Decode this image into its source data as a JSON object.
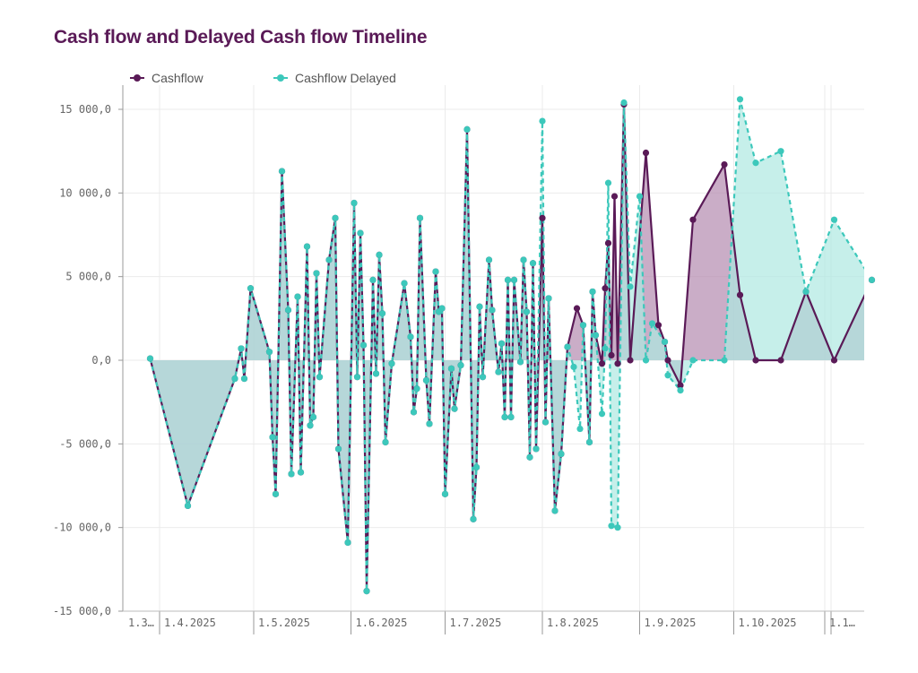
{
  "title": "Cash flow and Delayed Cash flow Timeline",
  "colors": {
    "cashflow": "#5a1a57",
    "delayed": "#3cc8bb",
    "cashflow_fill": "#b48aaf",
    "delayed_fill": "#aee8e1",
    "overlap_fill": "#7fa4ad",
    "grid": "#ebebeb"
  },
  "chart_data": {
    "type": "area",
    "title": "Cash flow and Delayed Cash flow Timeline",
    "xlabel": "",
    "ylabel": "",
    "ylim": [
      -15000,
      15000
    ],
    "xlim": [
      "2025-03-29",
      "2025-10-30"
    ],
    "y_ticks": [
      "15 000,0",
      "10 000,0",
      "5 000,0",
      "0,0",
      "-5 000,0",
      "-10 000,0",
      "-15 000,0"
    ],
    "x_ticks": [
      {
        "date": "2025-03-29",
        "label": "1.3…"
      },
      {
        "date": "2025-04-01",
        "label": "1.4.2025"
      },
      {
        "date": "2025-05-01",
        "label": "1.5.2025"
      },
      {
        "date": "2025-06-01",
        "label": "1.6.2025"
      },
      {
        "date": "2025-07-01",
        "label": "1.7.2025"
      },
      {
        "date": "2025-08-01",
        "label": "1.8.2025"
      },
      {
        "date": "2025-09-01",
        "label": "1.9.2025"
      },
      {
        "date": "2025-10-01",
        "label": "1.10.2025"
      },
      {
        "date": "2025-11-01",
        "label": "1.1…"
      }
    ],
    "grid": true,
    "legend_position": "top-left",
    "series": [
      {
        "name": "Cashflow",
        "points": [
          [
            "2025-03-29",
            100
          ],
          [
            "2025-04-10",
            -8700
          ],
          [
            "2025-04-25",
            -1100
          ],
          [
            "2025-04-27",
            700
          ],
          [
            "2025-04-28",
            -1100
          ],
          [
            "2025-04-30",
            4300
          ],
          [
            "2025-05-06",
            500
          ],
          [
            "2025-05-07",
            -4600
          ],
          [
            "2025-05-08",
            -8000
          ],
          [
            "2025-05-10",
            11300
          ],
          [
            "2025-05-12",
            3000
          ],
          [
            "2025-05-13",
            -6800
          ],
          [
            "2025-05-15",
            3800
          ],
          [
            "2025-05-16",
            -6700
          ],
          [
            "2025-05-18",
            6800
          ],
          [
            "2025-05-19",
            -3900
          ],
          [
            "2025-05-20",
            -3400
          ],
          [
            "2025-05-21",
            5200
          ],
          [
            "2025-05-22",
            -1000
          ],
          [
            "2025-05-25",
            6000
          ],
          [
            "2025-05-27",
            8500
          ],
          [
            "2025-05-28",
            -5300
          ],
          [
            "2025-05-31",
            -10900
          ],
          [
            "2025-06-02",
            9400
          ],
          [
            "2025-06-03",
            -1000
          ],
          [
            "2025-06-04",
            7600
          ],
          [
            "2025-06-05",
            900
          ],
          [
            "2025-06-06",
            -13800
          ],
          [
            "2025-06-08",
            4800
          ],
          [
            "2025-06-09",
            -800
          ],
          [
            "2025-06-10",
            6300
          ],
          [
            "2025-06-11",
            2800
          ],
          [
            "2025-06-12",
            -4900
          ],
          [
            "2025-06-14",
            -200
          ],
          [
            "2025-06-18",
            4600
          ],
          [
            "2025-06-20",
            1400
          ],
          [
            "2025-06-21",
            -3100
          ],
          [
            "2025-06-22",
            -1700
          ],
          [
            "2025-06-23",
            8500
          ],
          [
            "2025-06-25",
            -1200
          ],
          [
            "2025-06-26",
            -3800
          ],
          [
            "2025-06-28",
            5300
          ],
          [
            "2025-06-29",
            2900
          ],
          [
            "2025-06-30",
            3100
          ],
          [
            "2025-07-01",
            -8000
          ],
          [
            "2025-07-03",
            -500
          ],
          [
            "2025-07-04",
            -2900
          ],
          [
            "2025-07-06",
            -300
          ],
          [
            "2025-07-08",
            13800
          ],
          [
            "2025-07-10",
            -9500
          ],
          [
            "2025-07-11",
            -6400
          ],
          [
            "2025-07-12",
            3200
          ],
          [
            "2025-07-13",
            -1000
          ],
          [
            "2025-07-15",
            6000
          ],
          [
            "2025-07-16",
            3000
          ],
          [
            "2025-07-18",
            -700
          ],
          [
            "2025-07-19",
            1000
          ],
          [
            "2025-07-20",
            -3400
          ],
          [
            "2025-07-21",
            4800
          ],
          [
            "2025-07-22",
            -3400
          ],
          [
            "2025-07-23",
            4800
          ],
          [
            "2025-07-25",
            -100
          ],
          [
            "2025-07-26",
            6000
          ],
          [
            "2025-07-27",
            2900
          ],
          [
            "2025-07-28",
            -5800
          ],
          [
            "2025-07-29",
            5800
          ],
          [
            "2025-07-30",
            -5300
          ],
          [
            "2025-08-01",
            8500
          ],
          [
            "2025-08-02",
            -3700
          ],
          [
            "2025-08-03",
            3700
          ],
          [
            "2025-08-05",
            -9000
          ],
          [
            "2025-08-07",
            -5600
          ],
          [
            "2025-08-09",
            800
          ],
          [
            "2025-08-12",
            3100
          ],
          [
            "2025-08-14",
            2100
          ],
          [
            "2025-08-16",
            -4900
          ],
          [
            "2025-08-17",
            4100
          ],
          [
            "2025-08-18",
            1500
          ],
          [
            "2025-08-20",
            -200
          ],
          [
            "2025-08-21",
            4300
          ],
          [
            "2025-08-22",
            7000
          ],
          [
            "2025-08-23",
            300
          ],
          [
            "2025-08-24",
            9800
          ],
          [
            "2025-08-25",
            -200
          ],
          [
            "2025-08-27",
            15300
          ],
          [
            "2025-08-29",
            0
          ],
          [
            "2025-09-03",
            12400
          ],
          [
            "2025-09-07",
            2100
          ],
          [
            "2025-09-09",
            1100
          ],
          [
            "2025-09-10",
            0
          ],
          [
            "2025-09-14",
            -1500
          ],
          [
            "2025-09-18",
            8400
          ],
          [
            "2025-09-28",
            11700
          ],
          [
            "2025-10-03",
            3900
          ],
          [
            "2025-10-08",
            0
          ],
          [
            "2025-10-16",
            0
          ],
          [
            "2025-10-24",
            4100
          ],
          [
            "2025-11-02",
            0
          ],
          [
            "2025-11-14",
            4800
          ]
        ]
      },
      {
        "name": "Cashflow Delayed",
        "points": [
          [
            "2025-03-29",
            100
          ],
          [
            "2025-04-10",
            -8700
          ],
          [
            "2025-04-25",
            -1100
          ],
          [
            "2025-04-27",
            700
          ],
          [
            "2025-04-28",
            -1100
          ],
          [
            "2025-04-30",
            4300
          ],
          [
            "2025-05-06",
            500
          ],
          [
            "2025-05-07",
            -4600
          ],
          [
            "2025-05-08",
            -8000
          ],
          [
            "2025-05-10",
            11300
          ],
          [
            "2025-05-12",
            3000
          ],
          [
            "2025-05-13",
            -6800
          ],
          [
            "2025-05-15",
            3800
          ],
          [
            "2025-05-16",
            -6700
          ],
          [
            "2025-05-18",
            6800
          ],
          [
            "2025-05-19",
            -3900
          ],
          [
            "2025-05-20",
            -3400
          ],
          [
            "2025-05-21",
            5200
          ],
          [
            "2025-05-22",
            -1000
          ],
          [
            "2025-05-25",
            6000
          ],
          [
            "2025-05-27",
            8500
          ],
          [
            "2025-05-28",
            -5300
          ],
          [
            "2025-05-31",
            -10900
          ],
          [
            "2025-06-02",
            9400
          ],
          [
            "2025-06-03",
            -1000
          ],
          [
            "2025-06-04",
            7600
          ],
          [
            "2025-06-05",
            900
          ],
          [
            "2025-06-06",
            -13800
          ],
          [
            "2025-06-08",
            4800
          ],
          [
            "2025-06-09",
            -800
          ],
          [
            "2025-06-10",
            6300
          ],
          [
            "2025-06-11",
            2800
          ],
          [
            "2025-06-12",
            -4900
          ],
          [
            "2025-06-14",
            -200
          ],
          [
            "2025-06-18",
            4600
          ],
          [
            "2025-06-20",
            1400
          ],
          [
            "2025-06-21",
            -3100
          ],
          [
            "2025-06-22",
            -1700
          ],
          [
            "2025-06-23",
            8500
          ],
          [
            "2025-06-25",
            -1200
          ],
          [
            "2025-06-26",
            -3800
          ],
          [
            "2025-06-28",
            5300
          ],
          [
            "2025-06-29",
            2900
          ],
          [
            "2025-06-30",
            3100
          ],
          [
            "2025-07-01",
            -8000
          ],
          [
            "2025-07-03",
            -500
          ],
          [
            "2025-07-04",
            -2900
          ],
          [
            "2025-07-06",
            -300
          ],
          [
            "2025-07-08",
            13800
          ],
          [
            "2025-07-10",
            -9500
          ],
          [
            "2025-07-11",
            -6400
          ],
          [
            "2025-07-12",
            3200
          ],
          [
            "2025-07-13",
            -1000
          ],
          [
            "2025-07-15",
            6000
          ],
          [
            "2025-07-16",
            3000
          ],
          [
            "2025-07-18",
            -700
          ],
          [
            "2025-07-19",
            1000
          ],
          [
            "2025-07-20",
            -3400
          ],
          [
            "2025-07-21",
            4800
          ],
          [
            "2025-07-22",
            -3400
          ],
          [
            "2025-07-23",
            4800
          ],
          [
            "2025-07-25",
            -100
          ],
          [
            "2025-07-26",
            6000
          ],
          [
            "2025-07-27",
            2900
          ],
          [
            "2025-07-28",
            -5800
          ],
          [
            "2025-07-29",
            5800
          ],
          [
            "2025-07-30",
            -5300
          ],
          [
            "2025-08-01",
            14300
          ],
          [
            "2025-08-02",
            -3700
          ],
          [
            "2025-08-03",
            3700
          ],
          [
            "2025-08-05",
            -9000
          ],
          [
            "2025-08-07",
            -5600
          ],
          [
            "2025-08-09",
            800
          ],
          [
            "2025-08-11",
            -400
          ],
          [
            "2025-08-13",
            -4100
          ],
          [
            "2025-08-14",
            2100
          ],
          [
            "2025-08-16",
            -4900
          ],
          [
            "2025-08-17",
            4100
          ],
          [
            "2025-08-18",
            1500
          ],
          [
            "2025-08-20",
            -3200
          ],
          [
            "2025-08-21",
            700
          ],
          [
            "2025-08-22",
            10600
          ],
          [
            "2025-08-23",
            -9900
          ],
          [
            "2025-08-25",
            -10000
          ],
          [
            "2025-08-27",
            15400
          ],
          [
            "2025-08-29",
            4400
          ],
          [
            "2025-09-01",
            9800
          ],
          [
            "2025-09-03",
            0
          ],
          [
            "2025-09-05",
            2200
          ],
          [
            "2025-09-09",
            1100
          ],
          [
            "2025-09-10",
            -900
          ],
          [
            "2025-09-14",
            -1800
          ],
          [
            "2025-09-18",
            0
          ],
          [
            "2025-09-28",
            0
          ],
          [
            "2025-10-03",
            15600
          ],
          [
            "2025-10-08",
            11800
          ],
          [
            "2025-10-16",
            12500
          ],
          [
            "2025-10-24",
            4100
          ],
          [
            "2025-11-02",
            8400
          ],
          [
            "2025-11-14",
            4800
          ]
        ]
      }
    ]
  },
  "legend": [
    {
      "label": "Cashflow",
      "color": "#5a1a57"
    },
    {
      "label": "Cashflow Delayed",
      "color": "#3cc8bb"
    }
  ]
}
